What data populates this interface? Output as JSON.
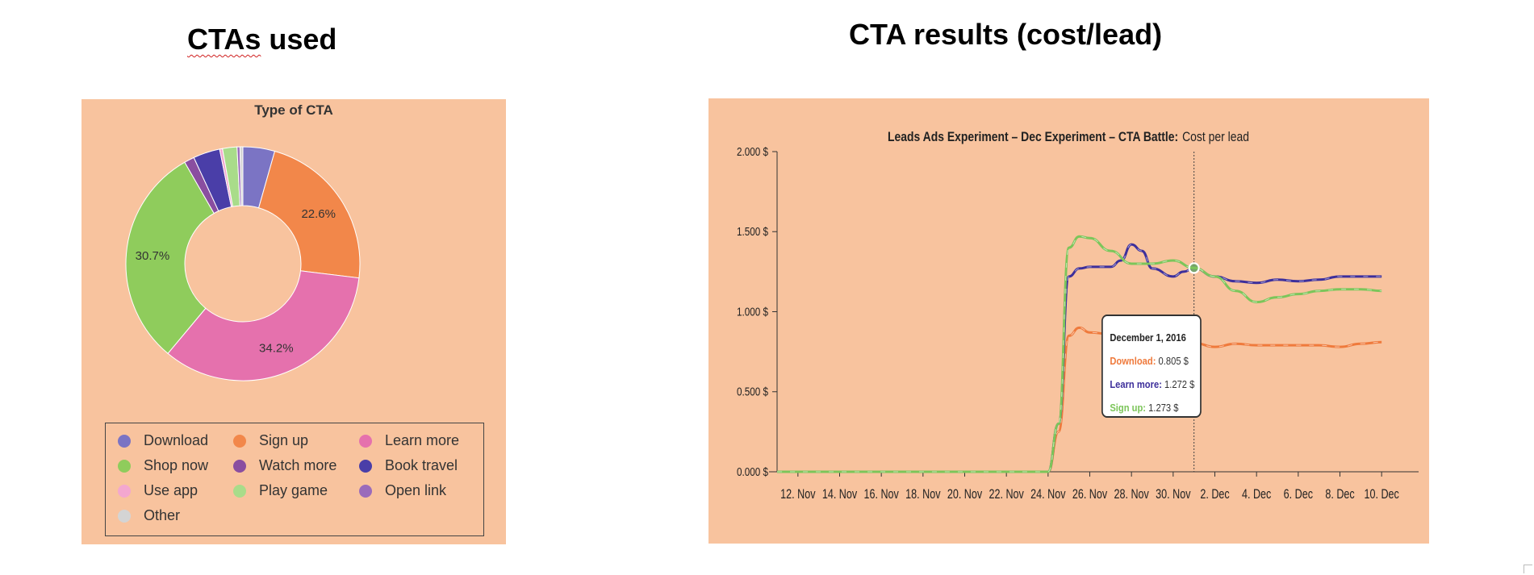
{
  "headings": {
    "left_prefix": "CTAs",
    "left_suffix": "used",
    "right": "CTA results (cost/lead)"
  },
  "chart_data": [
    {
      "type": "pie",
      "title": "Type of CTA",
      "slices": [
        {
          "name": "Download",
          "value": 4.4,
          "color": "#7b74c4",
          "label": ""
        },
        {
          "name": "Sign up",
          "value": 22.6,
          "color": "#f2874a",
          "label": "22.6%"
        },
        {
          "name": "Learn more",
          "value": 34.2,
          "color": "#e571ad",
          "label": "34.2%"
        },
        {
          "name": "Shop now",
          "value": 30.7,
          "color": "#8fcc5c",
          "label": "30.7%"
        },
        {
          "name": "Watch more",
          "value": 1.4,
          "color": "#8a4ea0",
          "label": ""
        },
        {
          "name": "Book travel",
          "value": 3.7,
          "color": "#4a3ea8",
          "label": ""
        },
        {
          "name": "Use app",
          "value": 0.4,
          "color": "#f3a7cf",
          "label": ""
        },
        {
          "name": "Play game",
          "value": 2.0,
          "color": "#a9dc8a",
          "label": ""
        },
        {
          "name": "Open link",
          "value": 0.4,
          "color": "#9a6bbb",
          "label": ""
        },
        {
          "name": "Other",
          "value": 0.4,
          "color": "#d4d4d4",
          "label": ""
        }
      ],
      "legend": [
        {
          "name": "Download",
          "color": "#7b74c4"
        },
        {
          "name": "Sign up",
          "color": "#f2874a"
        },
        {
          "name": "Learn more",
          "color": "#e571ad"
        },
        {
          "name": "Shop now",
          "color": "#8fcc5c"
        },
        {
          "name": "Watch more",
          "color": "#8a4ea0"
        },
        {
          "name": "Book travel",
          "color": "#4a3ea8"
        },
        {
          "name": "Use app",
          "color": "#f3a7cf"
        },
        {
          "name": "Play game",
          "color": "#a9dc8a"
        },
        {
          "name": "Open link",
          "color": "#9a6bbb"
        },
        {
          "name": "Other",
          "color": "#d4d4d4"
        }
      ],
      "legend_placement": "bottom",
      "donut": true
    },
    {
      "type": "line",
      "title_bold": "Leads Ads Experiment – Dec Experiment – CTA Battle:",
      "title_rest": "Cost per lead",
      "x_start": "2016-11-11",
      "x_end": "2016-12-11",
      "x_ticks": [
        "12. Nov",
        "14. Nov",
        "16. Nov",
        "18. Nov",
        "20. Nov",
        "22. Nov",
        "24. Nov",
        "26. Nov",
        "28. Nov",
        "30. Nov",
        "2. Dec",
        "4. Dec",
        "6. Dec",
        "8. Dec",
        "10. Dec"
      ],
      "y_ticks": [
        "0.000 $",
        "0.500 $",
        "1.000 $",
        "1.500 $",
        "2.000 $"
      ],
      "ylim": [
        0,
        2
      ],
      "grid": false,
      "series": [
        {
          "name": "Download",
          "color": "#ef7a3c",
          "points": [
            [
              "2016-11-11",
              0
            ],
            [
              "2016-11-24",
              0
            ],
            [
              "2016-11-24.5",
              0.25
            ],
            [
              "2016-11-25",
              0.85
            ],
            [
              "2016-11-25.5",
              0.9
            ],
            [
              "2016-11-26",
              0.87
            ],
            [
              "2016-11-27",
              0.86
            ],
            [
              "2016-11-28",
              0.86
            ],
            [
              "2016-11-29",
              0.86
            ],
            [
              "2016-11-30",
              0.85
            ],
            [
              "2016-12-01",
              0.805
            ],
            [
              "2016-12-02",
              0.78
            ],
            [
              "2016-12-03",
              0.8
            ],
            [
              "2016-12-04",
              0.79
            ],
            [
              "2016-12-05",
              0.79
            ],
            [
              "2016-12-06",
              0.79
            ],
            [
              "2016-12-07",
              0.79
            ],
            [
              "2016-12-08",
              0.78
            ],
            [
              "2016-12-09",
              0.8
            ],
            [
              "2016-12-10",
              0.81
            ]
          ]
        },
        {
          "name": "Learn more",
          "color": "#3d2f9b",
          "points": [
            [
              "2016-11-11",
              0
            ],
            [
              "2016-11-24",
              0
            ],
            [
              "2016-11-24.5",
              0.3
            ],
            [
              "2016-11-25",
              1.22
            ],
            [
              "2016-11-25.5",
              1.27
            ],
            [
              "2016-11-26",
              1.28
            ],
            [
              "2016-11-27",
              1.28
            ],
            [
              "2016-11-27.5",
              1.32
            ],
            [
              "2016-11-28",
              1.42
            ],
            [
              "2016-11-28.5",
              1.38
            ],
            [
              "2016-11-29",
              1.27
            ],
            [
              "2016-11-30",
              1.22
            ],
            [
              "2016-11-30.5",
              1.25
            ],
            [
              "2016-12-01",
              1.272
            ],
            [
              "2016-12-02",
              1.22
            ],
            [
              "2016-12-03",
              1.19
            ],
            [
              "2016-12-04",
              1.18
            ],
            [
              "2016-12-05",
              1.2
            ],
            [
              "2016-12-06",
              1.19
            ],
            [
              "2016-12-07",
              1.2
            ],
            [
              "2016-12-08",
              1.22
            ],
            [
              "2016-12-09",
              1.22
            ],
            [
              "2016-12-10",
              1.22
            ]
          ]
        },
        {
          "name": "Sign up",
          "color": "#7cc55a",
          "points": [
            [
              "2016-11-11",
              0
            ],
            [
              "2016-11-24",
              0
            ],
            [
              "2016-11-24.5",
              0.3
            ],
            [
              "2016-11-25",
              1.4
            ],
            [
              "2016-11-25.5",
              1.47
            ],
            [
              "2016-11-26",
              1.46
            ],
            [
              "2016-11-27",
              1.38
            ],
            [
              "2016-11-28",
              1.3
            ],
            [
              "2016-11-29",
              1.3
            ],
            [
              "2016-11-30",
              1.32
            ],
            [
              "2016-12-01",
              1.273
            ],
            [
              "2016-12-02",
              1.22
            ],
            [
              "2016-12-03",
              1.13
            ],
            [
              "2016-12-04",
              1.06
            ],
            [
              "2016-12-05",
              1.09
            ],
            [
              "2016-12-06",
              1.11
            ],
            [
              "2016-12-07",
              1.13
            ],
            [
              "2016-12-08",
              1.14
            ],
            [
              "2016-12-09",
              1.14
            ],
            [
              "2016-12-10",
              1.13
            ]
          ]
        }
      ],
      "crosshair_x": "2016-12-01",
      "tooltip": {
        "date": "December 1, 2016",
        "rows": [
          {
            "name": "Download",
            "value": "0.805 $",
            "color": "#ef7a3c"
          },
          {
            "name": "Learn more",
            "value": "1.272 $",
            "color": "#3d2f9b"
          },
          {
            "name": "Sign up",
            "value": "1.273 $",
            "color": "#7cc55a"
          }
        ]
      }
    }
  ]
}
